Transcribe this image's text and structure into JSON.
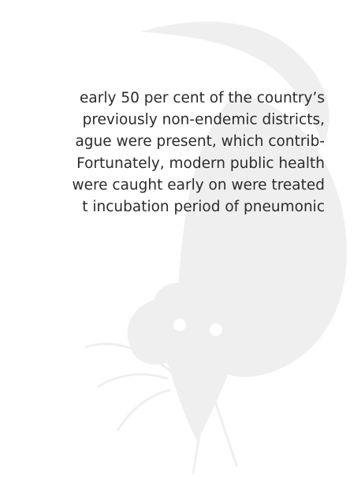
{
  "text": {
    "lines": [
      "early 50 per cent of the country’s",
      "previously non-endemic districts,",
      "ague were present, which contrib-",
      "Fortunately, modern public health",
      "were caught early on were treated",
      "t incubation period of pneumonic"
    ]
  }
}
